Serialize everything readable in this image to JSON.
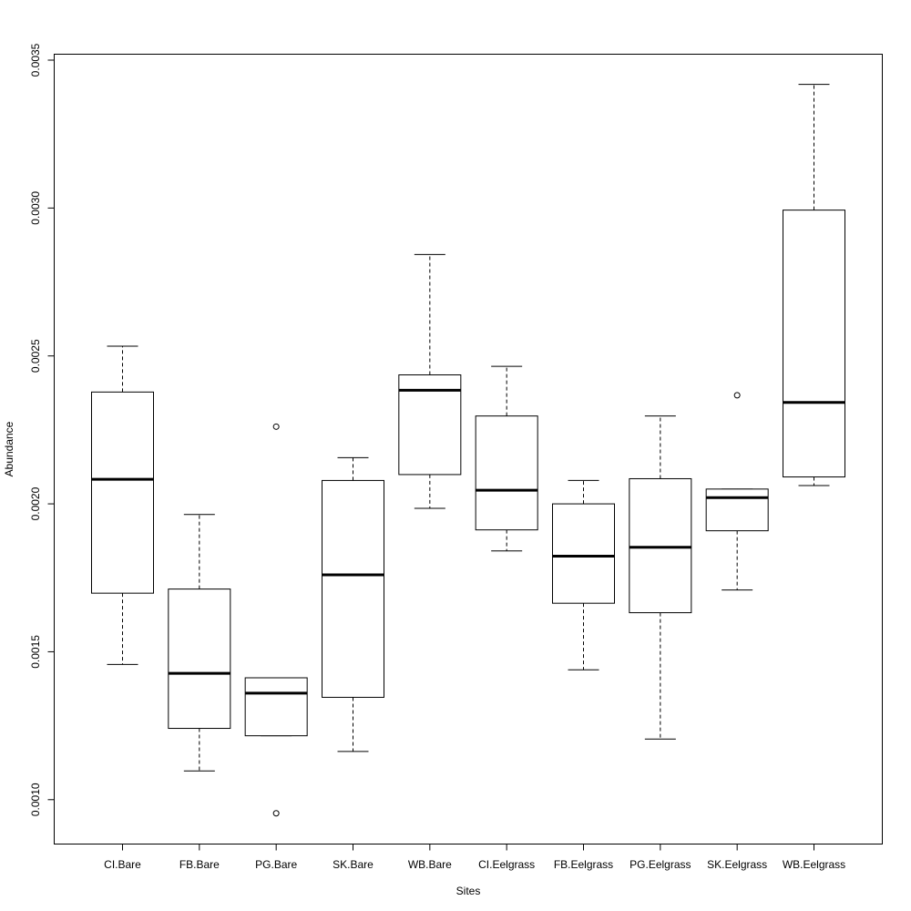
{
  "chart_data": {
    "type": "boxplot",
    "title": "",
    "xlabel": "Sites",
    "ylabel": "Abundance",
    "ylim": [
      0.00085,
      0.00352
    ],
    "yticks": [
      0.001,
      0.0015,
      0.002,
      0.0025,
      0.003,
      0.0035
    ],
    "ytick_labels": [
      "0.0010",
      "0.0015",
      "0.0020",
      "0.0025",
      "0.0030",
      "0.0035"
    ],
    "grid": false,
    "categories": [
      "CI.Bare",
      "FB.Bare",
      "PG.Bare",
      "SK.Bare",
      "WB.Bare",
      "CI.Eelgrass",
      "FB.Eelgrass",
      "PG.Eelgrass",
      "SK.Eelgrass",
      "WB.Eelgrass"
    ],
    "boxes": [
      {
        "whisker_low": 0.001457,
        "q1": 0.001698,
        "median": 0.002083,
        "q3": 0.002378,
        "whisker_high": 0.002533,
        "outliers": []
      },
      {
        "whisker_low": 0.001097,
        "q1": 0.001241,
        "median": 0.001427,
        "q3": 0.001712,
        "whisker_high": 0.001964,
        "outliers": []
      },
      {
        "whisker_low": 0.001216,
        "q1": 0.001216,
        "median": 0.00136,
        "q3": 0.001412,
        "whisker_high": 0.001412,
        "outliers": [
          0.002261,
          0.000954
        ]
      },
      {
        "whisker_low": 0.001163,
        "q1": 0.001346,
        "median": 0.00176,
        "q3": 0.002079,
        "whisker_high": 0.002156,
        "outliers": []
      },
      {
        "whisker_low": 0.001985,
        "q1": 0.002099,
        "median": 0.002384,
        "q3": 0.002436,
        "whisker_high": 0.002843,
        "outliers": []
      },
      {
        "whisker_low": 0.001841,
        "q1": 0.001912,
        "median": 0.002046,
        "q3": 0.002297,
        "whisker_high": 0.002465,
        "outliers": []
      },
      {
        "whisker_low": 0.001439,
        "q1": 0.001664,
        "median": 0.001823,
        "q3": 0.002,
        "whisker_high": 0.002079,
        "outliers": []
      },
      {
        "whisker_low": 0.001205,
        "q1": 0.001632,
        "median": 0.001853,
        "q3": 0.002085,
        "whisker_high": 0.002297,
        "outliers": []
      },
      {
        "whisker_low": 0.001709,
        "q1": 0.001909,
        "median": 0.002021,
        "q3": 0.00205,
        "whisker_high": 0.00205,
        "outliers": [
          0.002367
        ]
      },
      {
        "whisker_low": 0.002062,
        "q1": 0.002091,
        "median": 0.002343,
        "q3": 0.002993,
        "whisker_high": 0.003418,
        "outliers": []
      }
    ]
  }
}
